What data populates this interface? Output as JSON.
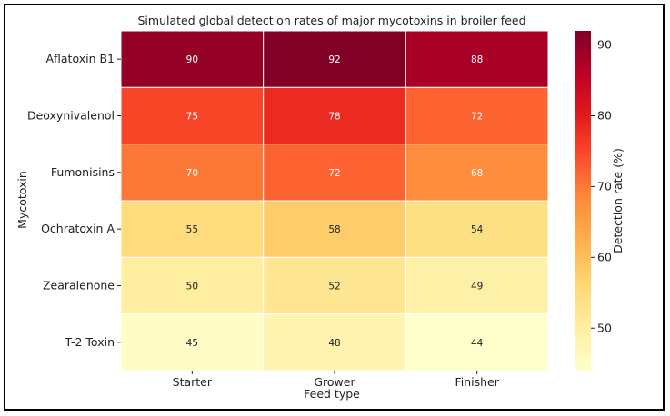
{
  "chart_data": {
    "type": "heatmap",
    "title": "Simulated global detection rates of major mycotoxins in broiler feed",
    "xlabel": "Feed type",
    "ylabel": "Mycotoxin",
    "x_categories": [
      "Starter",
      "Grower",
      "Finisher"
    ],
    "y_categories": [
      "Aflatoxin B1",
      "Deoxynivalenol",
      "Fumonisins",
      "Ochratoxin A",
      "Zearalenone",
      "T-2 Toxin"
    ],
    "values": [
      [
        90,
        92,
        88
      ],
      [
        75,
        78,
        72
      ],
      [
        70,
        72,
        68
      ],
      [
        55,
        58,
        54
      ],
      [
        50,
        52,
        49
      ],
      [
        45,
        48,
        44
      ]
    ],
    "colorbar": {
      "label": "Detection rate (%)",
      "ticks": [
        50,
        60,
        70,
        80,
        90
      ],
      "range": [
        44,
        92
      ],
      "colormap": "YlOrRd"
    },
    "annotate_cells": true,
    "grid": false
  }
}
